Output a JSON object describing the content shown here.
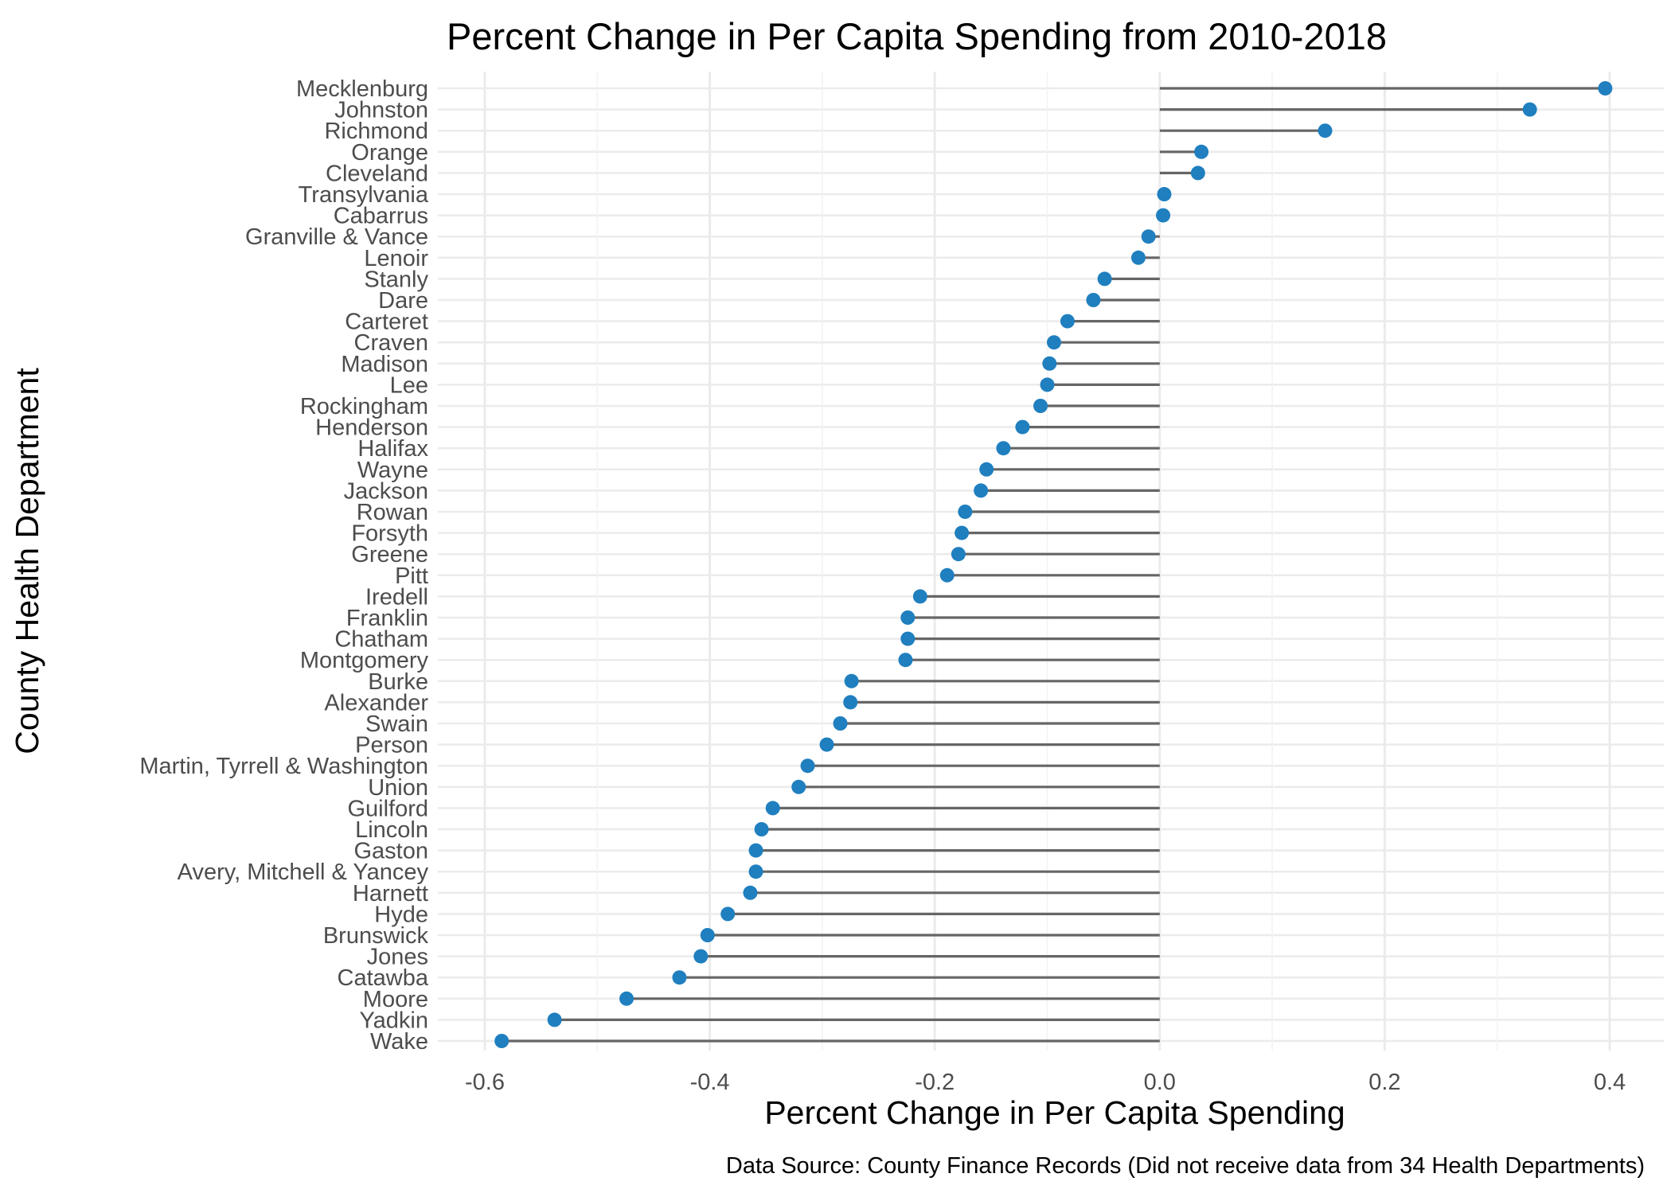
{
  "chart_data": {
    "type": "lollipop",
    "title": "Percent Change in Per Capita Spending from 2010-2018",
    "xlabel": "Percent Change in Per Capita Spending",
    "ylabel": "County Health Department",
    "caption": "Data Source: County Finance Records (Did not receive data from 34 Health Departments)",
    "xlim": [
      -0.6,
      0.4
    ],
    "x_ticks": [
      "-0.6",
      "-0.4",
      "-0.2",
      "0.0",
      "0.2",
      "0.4"
    ],
    "grid": true,
    "colors": {
      "point": "#1f7fbf",
      "segment": "#666666",
      "grid": "#ebebeb"
    },
    "categories": [
      "Mecklenburg",
      "Johnston",
      "Richmond",
      "Orange",
      "Cleveland",
      "Transylvania",
      "Cabarrus",
      "Granville & Vance",
      "Lenoir",
      "Stanly",
      "Dare",
      "Carteret",
      "Craven",
      "Madison",
      "Lee",
      "Rockingham",
      "Henderson",
      "Halifax",
      "Wayne",
      "Jackson",
      "Rowan",
      "Forsyth",
      "Greene",
      "Pitt",
      "Iredell",
      "Franklin",
      "Chatham",
      "Montgomery",
      "Burke",
      "Alexander",
      "Swain",
      "Person",
      "Martin, Tyrrell & Washington",
      "Union",
      "Guilford",
      "Lincoln",
      "Gaston",
      "Avery, Mitchell & Yancey",
      "Harnett",
      "Hyde",
      "Brunswick",
      "Jones",
      "Catawba",
      "Moore",
      "Yadkin",
      "Wake"
    ],
    "values": [
      0.396,
      0.329,
      0.147,
      0.037,
      0.034,
      0.004,
      0.003,
      -0.01,
      -0.019,
      -0.049,
      -0.059,
      -0.082,
      -0.094,
      -0.098,
      -0.1,
      -0.106,
      -0.122,
      -0.139,
      -0.154,
      -0.159,
      -0.173,
      -0.176,
      -0.179,
      -0.189,
      -0.213,
      -0.224,
      -0.224,
      -0.226,
      -0.274,
      -0.275,
      -0.284,
      -0.296,
      -0.313,
      -0.321,
      -0.344,
      -0.354,
      -0.359,
      -0.359,
      -0.364,
      -0.384,
      -0.402,
      -0.408,
      -0.427,
      -0.474,
      -0.538,
      -0.585
    ]
  }
}
